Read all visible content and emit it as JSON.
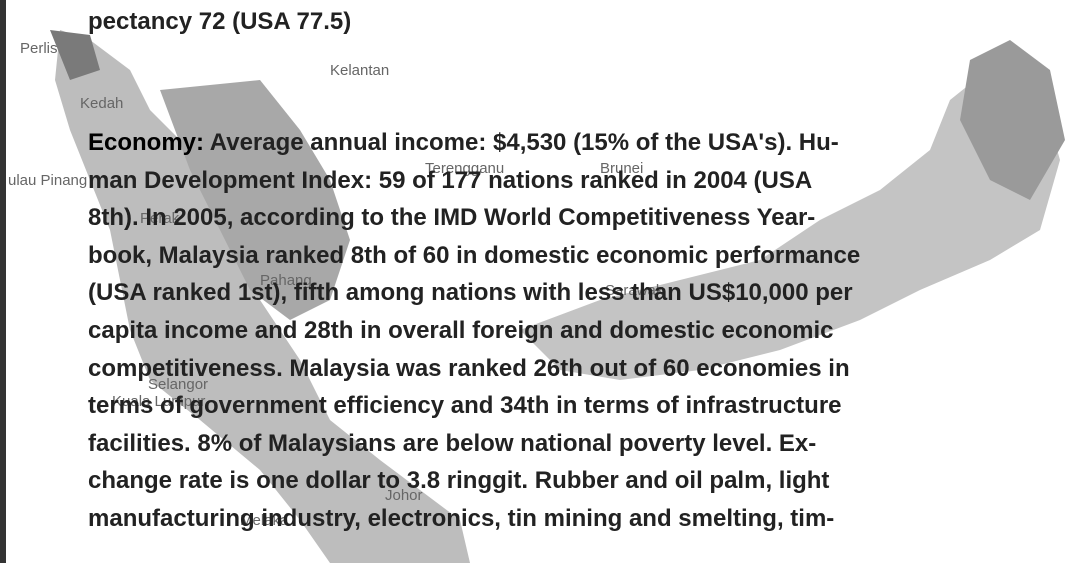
{
  "top_line": "pectancy 72  (USA 77.5)",
  "economy": {
    "heading": "Economy:",
    "lines": [
      "Average annual income: $4,530 (15% of the USA's).  Hu-",
      "man Development Index: 59 of 177 nations ranked  in 2004 (USA",
      "8th).   In 2005, according to the IMD World Competitiveness Year-",
      "book, Malaysia ranked 8th of 60 in domestic economic performance",
      "(USA ranked 1st), fifth among nations with less than US$10,000 per",
      "capita income and 28th in overall foreign and domestic economic",
      "competitiveness.  Malaysia was ranked 26th out of 60 economies in",
      "terms of government efficiency and 34th in terms of infrastructure",
      "facilities.  8% of Malaysians are below national poverty level.  Ex-",
      "change rate is one dollar to 3.8 ringgit.  Rubber and oil palm, light",
      "manufacturing industry, electronics, tin mining and smelting, tim-"
    ]
  },
  "map_labels": [
    "Perlis",
    "Kelantan",
    "Kedah",
    "Terengganu",
    "Brunei",
    "ulau Pinang",
    "Perak",
    "Sarawak",
    "Pahang",
    "Selangor",
    "Kuala Lumpur",
    "Melaka",
    "Johor"
  ]
}
